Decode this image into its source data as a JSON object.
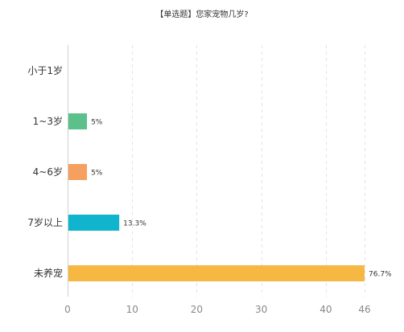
{
  "chart_data": {
    "type": "bar",
    "orientation": "horizontal",
    "title": "【单选题】您家宠物几岁?",
    "categories": [
      "小于1岁",
      "1~3岁",
      "4~6岁",
      "7岁以上",
      "未养宠"
    ],
    "values": [
      0,
      3,
      3,
      8,
      46
    ],
    "data_labels": [
      "",
      "5%",
      "5%",
      "13.3%",
      "76.7%"
    ],
    "colors": [
      "#5bc08a",
      "#5bc08a",
      "#f5a05e",
      "#10b4cc",
      "#f6b743"
    ],
    "xlim": [
      0,
      46
    ],
    "xticks": [
      0,
      10,
      20,
      30,
      40,
      46
    ],
    "grid": true,
    "xlabel": "",
    "ylabel": ""
  }
}
